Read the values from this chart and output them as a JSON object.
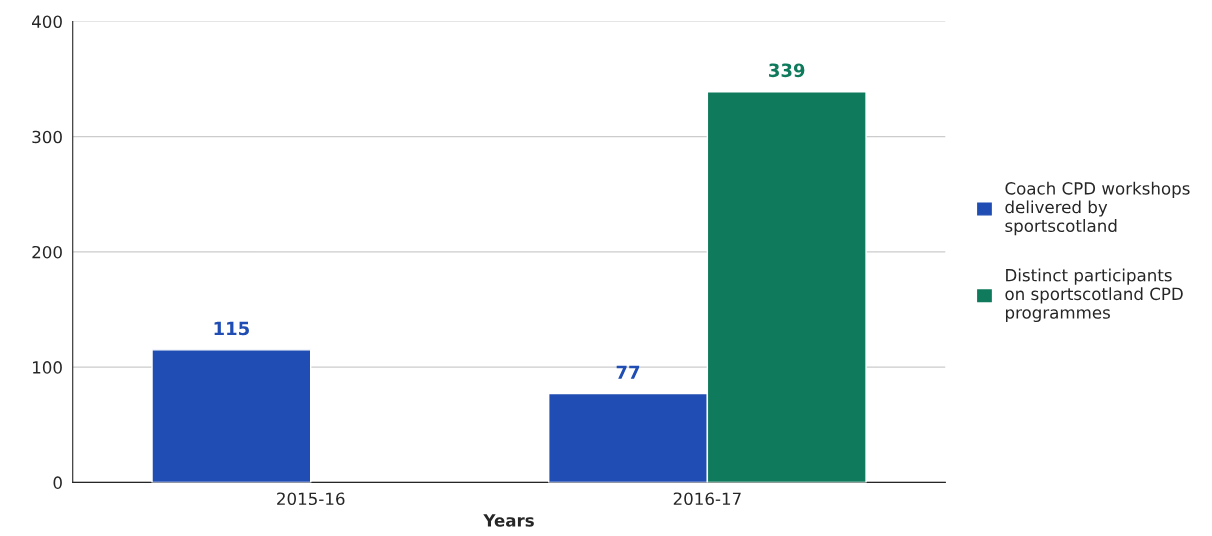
{
  "chart_data": {
    "type": "bar",
    "xlabel": "Years",
    "categories": [
      "2015-16",
      "2016-17"
    ],
    "series": [
      {
        "name": "Coach CPD workshops delivered by sportscotland",
        "color": "#1f4db3",
        "values": [
          115,
          77
        ]
      },
      {
        "name": "Distinct participants on sportscotland CPD programmes",
        "color": "#0f7a5c",
        "values": [
          null,
          339
        ]
      }
    ],
    "ylim": [
      0,
      400
    ],
    "yticks": [
      0,
      100,
      200,
      300,
      400
    ],
    "grid": "y",
    "legend": "right",
    "data_labels": true
  }
}
